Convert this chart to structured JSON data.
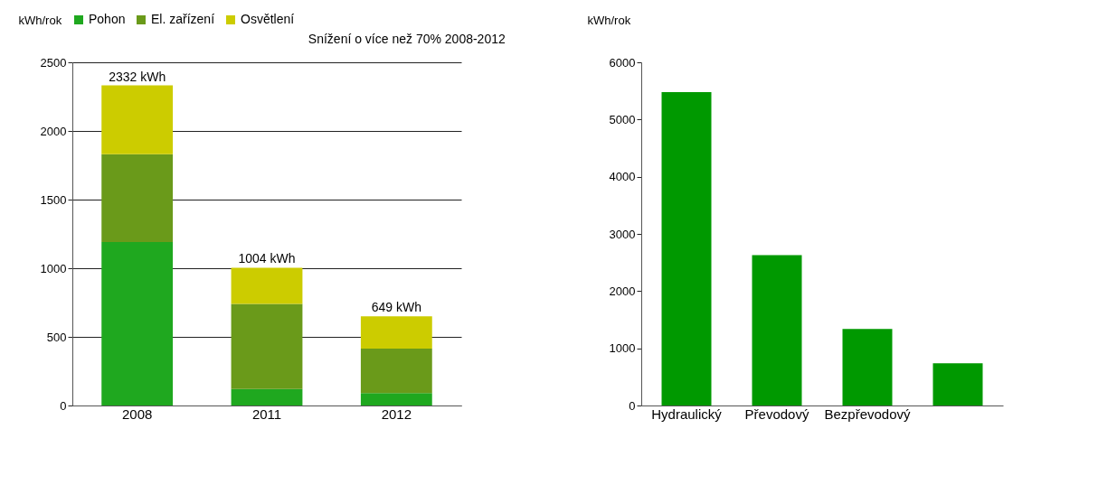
{
  "chart_data": [
    {
      "type": "bar",
      "stacked": true,
      "categories": [
        "2008",
        "2011",
        "2012"
      ],
      "ylabel": "kWh/rok",
      "ylim": [
        0,
        2500
      ],
      "yticks": [
        0,
        500,
        1000,
        1500,
        2000,
        2500
      ],
      "grid": "y",
      "legend": "top",
      "series": [
        {
          "name": "Pohon",
          "color": "#1fa81f",
          "values": [
            1190,
            120,
            90
          ]
        },
        {
          "name": "El. zařízení",
          "color": "#6a9a1a",
          "values": [
            640,
            620,
            325
          ]
        },
        {
          "name": "Osvětlení",
          "color": "#cccc00",
          "values": [
            502,
            264,
            234
          ]
        }
      ],
      "totals": [
        "2332 kWh",
        "1004 kWh",
        "649 kWh"
      ],
      "annotations": [
        "Snížení o více než 70% 2008-2012"
      ]
    },
    {
      "type": "bar",
      "categories": [
        "Hydraulický",
        "Převodový",
        "Bezpřevodový",
        null
      ],
      "ylabel": "kWh/rok",
      "ylim": [
        0,
        6000
      ],
      "yticks": [
        0,
        1000,
        2000,
        3000,
        4000,
        5000,
        6000
      ],
      "grid": false,
      "series": [
        {
          "color": "#009900",
          "values": [
            5480,
            2630,
            1340,
            740
          ]
        }
      ]
    }
  ]
}
